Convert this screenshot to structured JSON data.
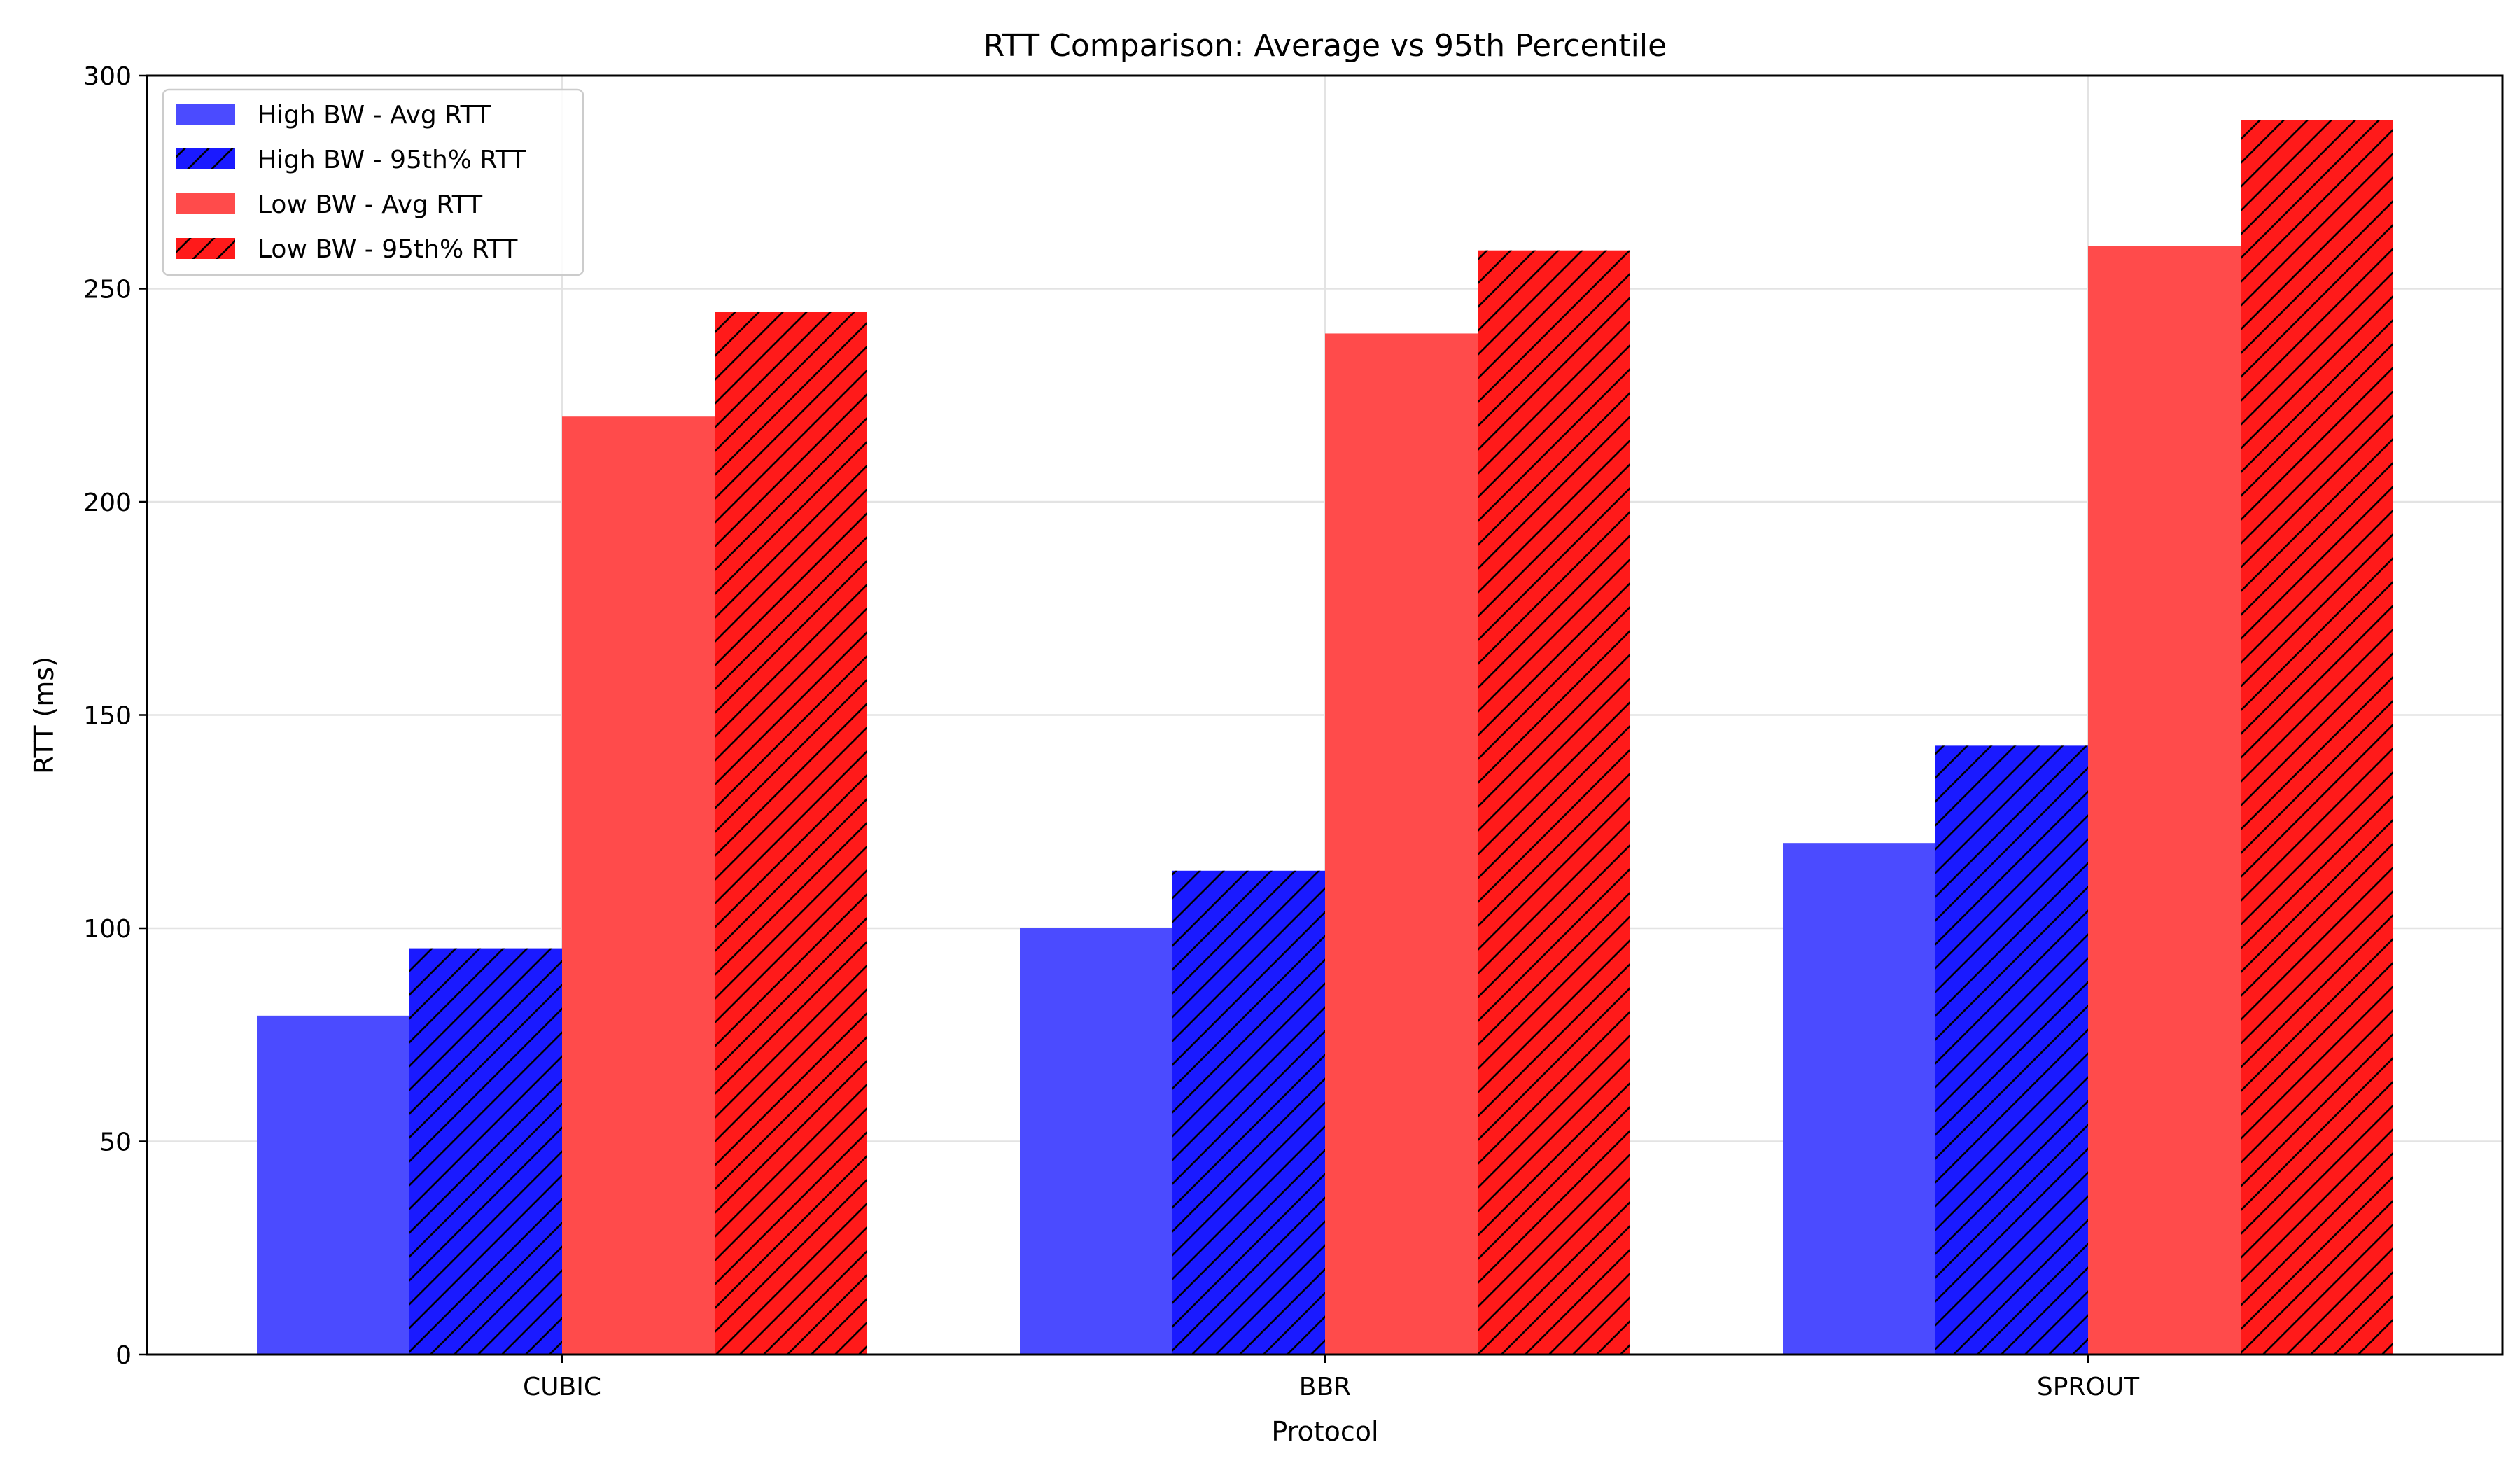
{
  "chart_data": {
    "type": "bar",
    "title": "RTT Comparison: Average vs 95th Percentile",
    "xlabel": "Protocol",
    "ylabel": "RTT (ms)",
    "categories": [
      "CUBIC",
      "BBR",
      "SPROUT"
    ],
    "ylim": [
      0,
      300
    ],
    "yticks": [
      0,
      50,
      100,
      150,
      200,
      250,
      300
    ],
    "grid": true,
    "legend_position": "top-left",
    "series": [
      {
        "name": "High BW - Avg RTT",
        "values": [
          79.5,
          100,
          120
        ],
        "color": "#4b4bff",
        "hatch": false
      },
      {
        "name": "High BW - 95th% RTT",
        "values": [
          95.3,
          113.5,
          142.8
        ],
        "color": "#1a1aff",
        "hatch": true
      },
      {
        "name": "Low BW - Avg RTT",
        "values": [
          220,
          239.5,
          260
        ],
        "color": "#ff4b4b",
        "hatch": false
      },
      {
        "name": "Low BW - 95th% RTT",
        "values": [
          244.5,
          259,
          289.5
        ],
        "color": "#ff1a1a",
        "hatch": true
      }
    ]
  }
}
